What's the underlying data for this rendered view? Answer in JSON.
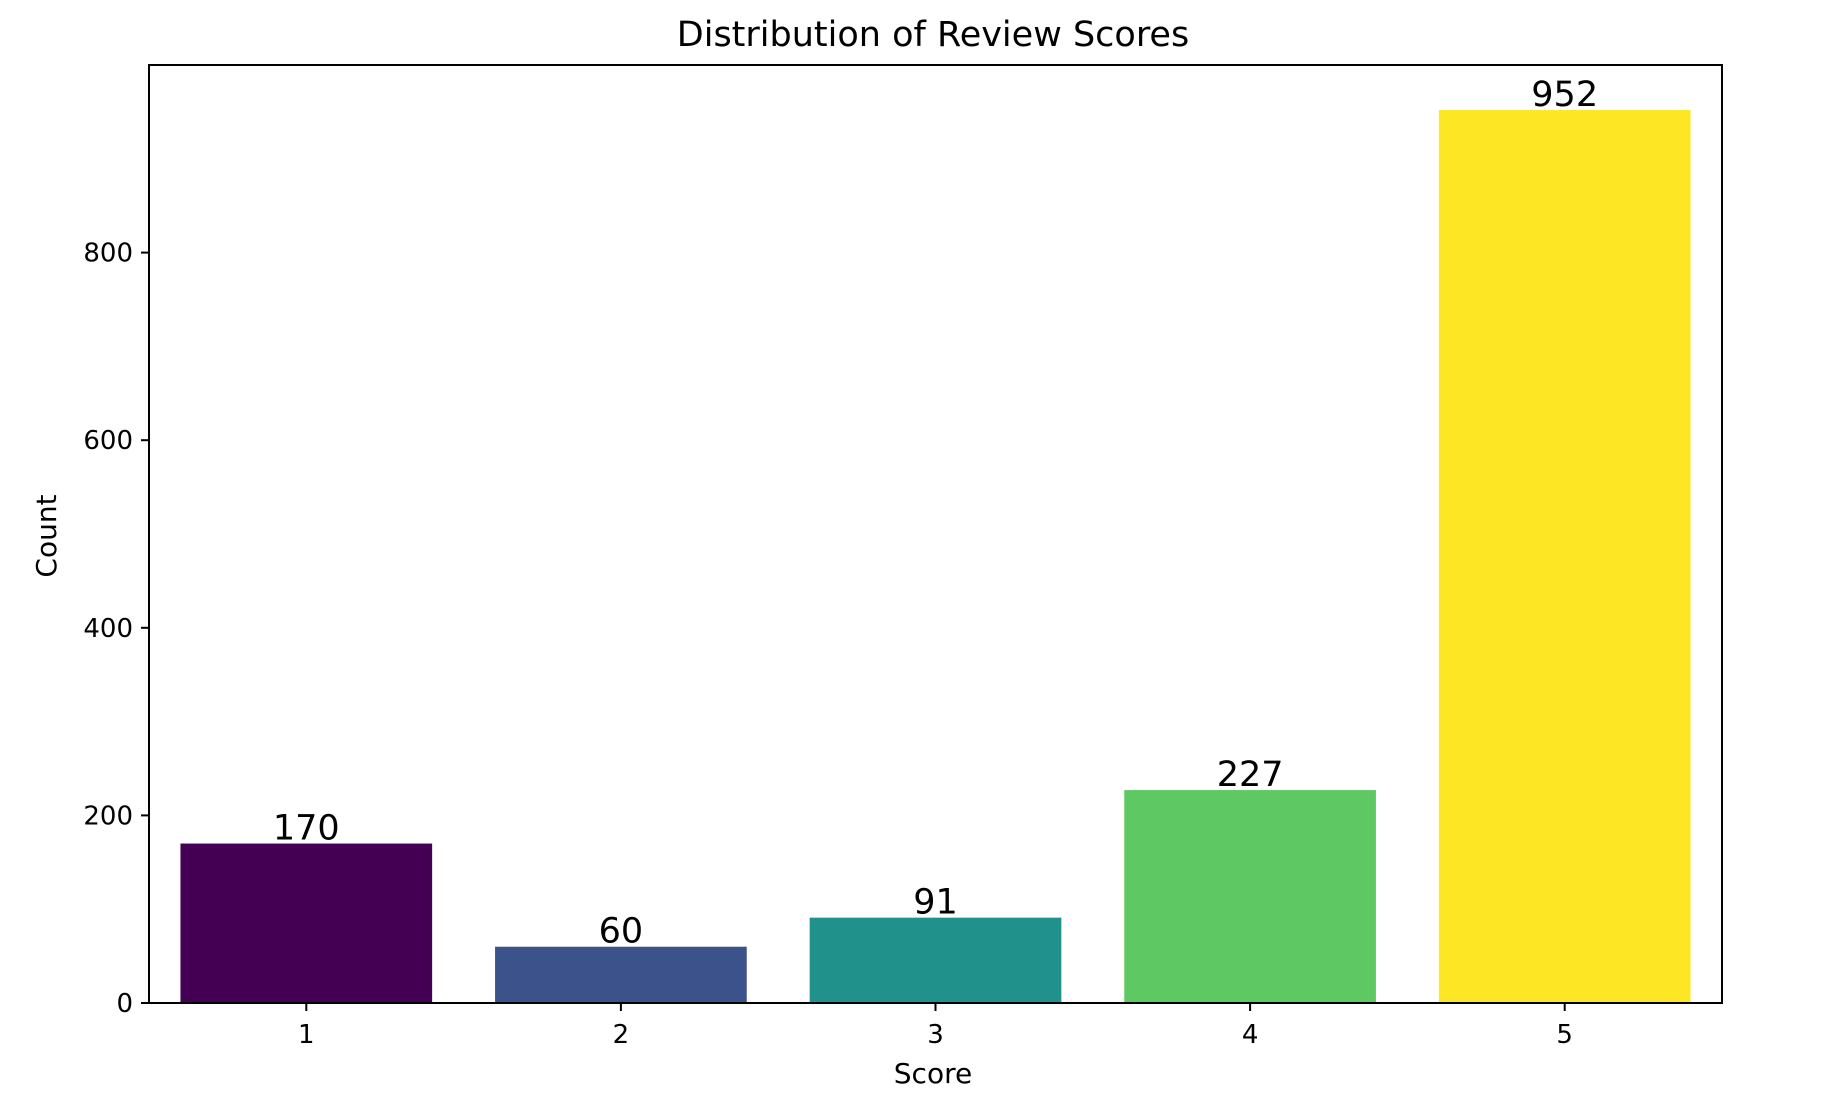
{
  "chart_data": {
    "type": "bar",
    "title": "Distribution of Review Scores",
    "xlabel": "Score",
    "ylabel": "Count",
    "categories": [
      "1",
      "2",
      "3",
      "4",
      "5"
    ],
    "values": [
      170,
      60,
      91,
      227,
      952
    ],
    "data_labels": [
      "170",
      "60",
      "91",
      "227",
      "952"
    ],
    "colors": [
      "#440154",
      "#3b528b",
      "#21918c",
      "#5ec962",
      "#fde725"
    ],
    "ylim": [
      0,
      1000
    ],
    "yticks": [
      0,
      200,
      400,
      600,
      800
    ],
    "ytick_labels": [
      "0",
      "200",
      "400",
      "600",
      "800"
    ],
    "grid": false,
    "legend": "none"
  }
}
